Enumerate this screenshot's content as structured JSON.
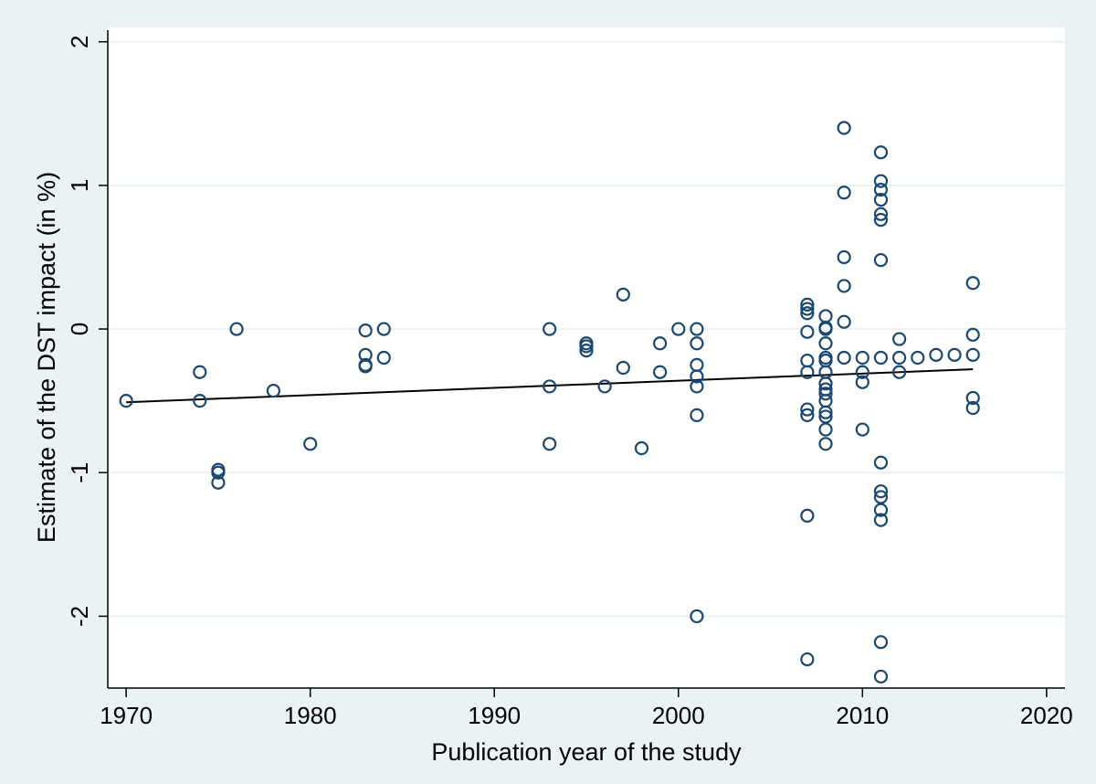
{
  "colors": {
    "background": "#EAF2F3",
    "plot_background": "#FFFFFF",
    "gridline": "#EAF2F3",
    "marker": "#1A476F",
    "fit_line": "#000000"
  },
  "chart_data": {
    "type": "scatter",
    "title": "",
    "xlabel": "Publication year of the study",
    "ylabel": "Estimate of the DST impact (in %)",
    "xlim": [
      1969,
      2021
    ],
    "ylim": [
      -2.5,
      2.1
    ],
    "xticks": [
      1970,
      1980,
      1990,
      2000,
      2010,
      2020
    ],
    "yticks": [
      -2,
      -1,
      0,
      1,
      2
    ],
    "grid": "horizontal",
    "legend": "none",
    "marker": "hollow-circle",
    "fit_line": {
      "type": "linear",
      "x": [
        1970,
        2016
      ],
      "y": [
        -0.51,
        -0.28
      ]
    },
    "points": [
      [
        1970,
        -0.5
      ],
      [
        1974,
        -0.3
      ],
      [
        1974,
        -0.5
      ],
      [
        1975,
        -0.98
      ],
      [
        1975,
        -1.0
      ],
      [
        1975,
        -1.07
      ],
      [
        1976,
        0.0
      ],
      [
        1978,
        -0.43
      ],
      [
        1980,
        -0.8
      ],
      [
        1983,
        -0.01
      ],
      [
        1983,
        -0.18
      ],
      [
        1983,
        -0.25
      ],
      [
        1983,
        -0.26
      ],
      [
        1984,
        0.0
      ],
      [
        1984,
        -0.2
      ],
      [
        1993,
        0.0
      ],
      [
        1993,
        -0.4
      ],
      [
        1993,
        -0.8
      ],
      [
        1995,
        -0.1
      ],
      [
        1995,
        -0.12
      ],
      [
        1995,
        -0.15
      ],
      [
        1996,
        -0.4
      ],
      [
        1997,
        0.24
      ],
      [
        1997,
        -0.27
      ],
      [
        1998,
        -0.83
      ],
      [
        1999,
        -0.1
      ],
      [
        1999,
        -0.3
      ],
      [
        2000,
        0.0
      ],
      [
        2001,
        0.0
      ],
      [
        2001,
        -0.1
      ],
      [
        2001,
        -0.25
      ],
      [
        2001,
        -0.33
      ],
      [
        2001,
        -0.4
      ],
      [
        2001,
        -0.6
      ],
      [
        2001,
        -2.0
      ],
      [
        2007,
        0.17
      ],
      [
        2007,
        0.14
      ],
      [
        2007,
        0.11
      ],
      [
        2007,
        -0.02
      ],
      [
        2007,
        -0.22
      ],
      [
        2007,
        -0.3
      ],
      [
        2007,
        -0.56
      ],
      [
        2007,
        -0.6
      ],
      [
        2007,
        -1.3
      ],
      [
        2007,
        -2.3
      ],
      [
        2008,
        0.09
      ],
      [
        2008,
        0.01
      ],
      [
        2008,
        0.0
      ],
      [
        2008,
        -0.1
      ],
      [
        2008,
        -0.2
      ],
      [
        2008,
        -0.22
      ],
      [
        2008,
        -0.3
      ],
      [
        2008,
        -0.38
      ],
      [
        2008,
        -0.42
      ],
      [
        2008,
        -0.45
      ],
      [
        2008,
        -0.5
      ],
      [
        2008,
        -0.58
      ],
      [
        2008,
        -0.61
      ],
      [
        2008,
        -0.7
      ],
      [
        2008,
        -0.8
      ],
      [
        2009,
        1.4
      ],
      [
        2009,
        0.95
      ],
      [
        2009,
        0.5
      ],
      [
        2009,
        0.3
      ],
      [
        2009,
        0.05
      ],
      [
        2009,
        -0.2
      ],
      [
        2010,
        -0.2
      ],
      [
        2010,
        -0.3
      ],
      [
        2010,
        -0.37
      ],
      [
        2010,
        -0.7
      ],
      [
        2011,
        1.23
      ],
      [
        2011,
        1.03
      ],
      [
        2011,
        0.97
      ],
      [
        2011,
        0.9
      ],
      [
        2011,
        0.8
      ],
      [
        2011,
        0.76
      ],
      [
        2011,
        0.48
      ],
      [
        2011,
        -0.2
      ],
      [
        2011,
        -0.93
      ],
      [
        2011,
        -1.13
      ],
      [
        2011,
        -1.17
      ],
      [
        2011,
        -1.26
      ],
      [
        2011,
        -1.33
      ],
      [
        2011,
        -2.18
      ],
      [
        2011,
        -2.42
      ],
      [
        2012,
        -0.07
      ],
      [
        2012,
        -0.2
      ],
      [
        2012,
        -0.3
      ],
      [
        2013,
        -0.2
      ],
      [
        2014,
        -0.18
      ],
      [
        2015,
        -0.18
      ],
      [
        2016,
        0.32
      ],
      [
        2016,
        -0.04
      ],
      [
        2016,
        -0.18
      ],
      [
        2016,
        -0.48
      ],
      [
        2016,
        -0.55
      ]
    ]
  }
}
